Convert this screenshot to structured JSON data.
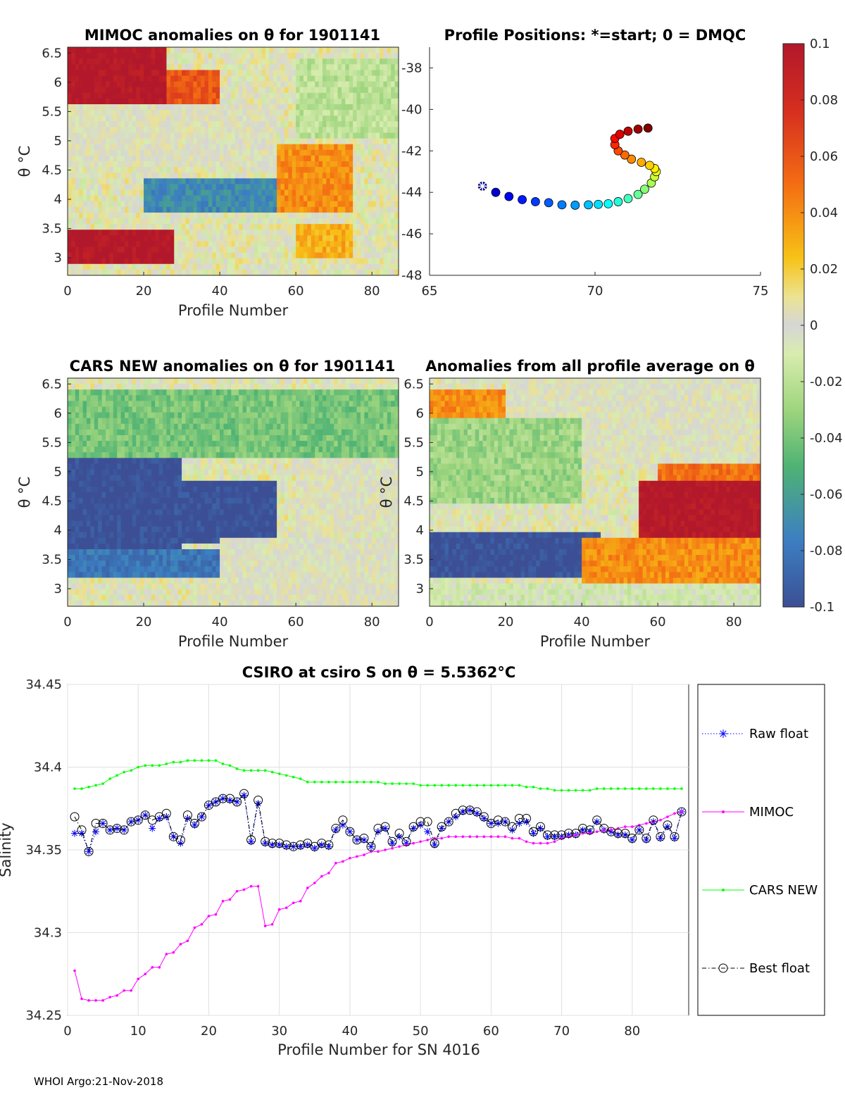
{
  "panels": {
    "mimoc": {
      "title": "MIMOC anomalies on θ  for 1901141",
      "xlabel": "Profile Number",
      "ylabel": "θ °C",
      "xticks": [
        "0",
        "20",
        "40",
        "60",
        "80"
      ],
      "yticks": [
        "6.5",
        "6",
        "5.5",
        "5",
        "4.5",
        "4",
        "3.5",
        "3"
      ]
    },
    "positions": {
      "title": "Profile Positions: *=start; 0 = DMQC",
      "xticks": [
        "65",
        "70",
        "75"
      ],
      "yticks": [
        "-38",
        "-40",
        "-42",
        "-44",
        "-46",
        "-48"
      ]
    },
    "cars": {
      "title": "CARS NEW anomalies on θ for 1901141",
      "xlabel": "Profile Number",
      "ylabel": "θ °C",
      "xticks": [
        "0",
        "20",
        "40",
        "60",
        "80"
      ],
      "yticks": [
        "6.5",
        "6",
        "5.5",
        "5",
        "4.5",
        "4",
        "3.5",
        "3"
      ]
    },
    "allavg": {
      "title": "Anomalies from all profile average on θ",
      "xlabel": "Profile Number",
      "ylabel": "θ °C",
      "xticks": [
        "0",
        "20",
        "40",
        "60",
        "80"
      ],
      "yticks": [
        "6.5",
        "6",
        "5.5",
        "5",
        "4.5",
        "4",
        "3.5",
        "3"
      ]
    },
    "colorbar": {
      "ticks": [
        "0.1",
        "0.08",
        "0.06",
        "0.04",
        "0.02",
        "0",
        "-0.02",
        "-0.04",
        "-0.06",
        "-0.08",
        "-0.1"
      ]
    }
  },
  "chart_data": [
    {
      "type": "heatmap",
      "title": "MIMOC anomalies on θ  for 1901141",
      "xlabel": "Profile Number",
      "ylabel": "θ °C",
      "xlim": [
        0,
        87
      ],
      "ylim": [
        2.7,
        6.6
      ],
      "clim": [
        -0.1,
        0.1
      ],
      "regions": [
        {
          "x": [
            0,
            26
          ],
          "y": [
            5.6,
            6.6
          ],
          "value": 0.1
        },
        {
          "x": [
            26,
            40
          ],
          "y": [
            5.2,
            6.2
          ],
          "value": 0.06
        },
        {
          "x": [
            0,
            55
          ],
          "y": [
            4.6,
            5.6
          ],
          "value": 0.0
        },
        {
          "x": [
            20,
            55
          ],
          "y": [
            3.8,
            4.4
          ],
          "value": -0.07
        },
        {
          "x": [
            55,
            75
          ],
          "y": [
            3.8,
            4.9
          ],
          "value": 0.04
        },
        {
          "x": [
            0,
            28
          ],
          "y": [
            2.9,
            3.5
          ],
          "value": 0.1
        },
        {
          "x": [
            60,
            75
          ],
          "y": [
            3.0,
            3.6
          ],
          "value": 0.03
        },
        {
          "x": [
            60,
            87
          ],
          "y": [
            5.0,
            6.4
          ],
          "value": -0.02
        }
      ]
    },
    {
      "type": "scatter",
      "title": "Profile Positions: *=start; 0 = DMQC",
      "xlim": [
        65,
        75
      ],
      "ylim": [
        -48,
        -37
      ],
      "colorby": "profile number",
      "lon": [
        66.6,
        67.0,
        67.4,
        67.8,
        68.2,
        68.6,
        69.0,
        69.4,
        69.8,
        70.1,
        70.4,
        70.7,
        71.0,
        71.3,
        71.5,
        71.7,
        71.8,
        71.85,
        71.8,
        71.65,
        71.4,
        71.1,
        70.9,
        70.7,
        70.6,
        70.6,
        70.75,
        71.0,
        71.3,
        71.6
      ],
      "lat": [
        -43.7,
        -44.0,
        -44.2,
        -44.35,
        -44.45,
        -44.5,
        -44.6,
        -44.62,
        -44.6,
        -44.58,
        -44.55,
        -44.45,
        -44.3,
        -44.1,
        -43.85,
        -43.55,
        -43.25,
        -43.0,
        -42.85,
        -42.7,
        -42.55,
        -42.4,
        -42.2,
        -42.0,
        -41.7,
        -41.4,
        -41.2,
        -41.05,
        -40.95,
        -40.9
      ]
    },
    {
      "type": "heatmap",
      "title": "CARS NEW anomalies on θ for 1901141",
      "xlabel": "Profile Number",
      "ylabel": "θ °C",
      "xlim": [
        0,
        87
      ],
      "ylim": [
        2.7,
        6.6
      ],
      "clim": [
        -0.1,
        0.1
      ],
      "regions": [
        {
          "x": [
            0,
            30
          ],
          "y": [
            3.7,
            5.2
          ],
          "value": -0.1
        },
        {
          "x": [
            30,
            55
          ],
          "y": [
            3.8,
            4.8
          ],
          "value": -0.1
        },
        {
          "x": [
            0,
            87
          ],
          "y": [
            5.2,
            6.4
          ],
          "value": -0.04
        },
        {
          "x": [
            40,
            87
          ],
          "y": [
            2.7,
            3.9
          ],
          "value": 0.0
        },
        {
          "x": [
            0,
            40
          ],
          "y": [
            3.2,
            3.7
          ],
          "value": -0.08
        },
        {
          "x": [
            60,
            87
          ],
          "y": [
            4.0,
            5.2
          ],
          "value": 0.0
        }
      ]
    },
    {
      "type": "heatmap",
      "title": "Anomalies from all profile average on θ",
      "xlabel": "Profile Number",
      "ylabel": "θ °C",
      "xlim": [
        0,
        87
      ],
      "ylim": [
        2.7,
        6.6
      ],
      "clim": [
        -0.1,
        0.1
      ],
      "regions": [
        {
          "x": [
            0,
            20
          ],
          "y": [
            5.9,
            6.4
          ],
          "value": 0.04
        },
        {
          "x": [
            20,
            87
          ],
          "y": [
            5.0,
            6.6
          ],
          "value": 0.0
        },
        {
          "x": [
            0,
            40
          ],
          "y": [
            4.5,
            5.9
          ],
          "value": -0.03
        },
        {
          "x": [
            0,
            45
          ],
          "y": [
            3.2,
            4.0
          ],
          "value": -0.1
        },
        {
          "x": [
            55,
            87
          ],
          "y": [
            3.9,
            4.8
          ],
          "value": 0.1
        },
        {
          "x": [
            60,
            87
          ],
          "y": [
            4.8,
            5.1
          ],
          "value": 0.05
        },
        {
          "x": [
            40,
            87
          ],
          "y": [
            3.1,
            3.9
          ],
          "value": 0.04
        },
        {
          "x": [
            0,
            87
          ],
          "y": [
            2.7,
            3.1
          ],
          "value": -0.01
        }
      ]
    },
    {
      "type": "line",
      "title": "CSIRO at csiro S on θ = 5.5362°C",
      "xlabel": "Profile Number for SN 4016",
      "ylabel": "Salinity",
      "xlim": [
        0,
        88
      ],
      "ylim": [
        34.25,
        34.45
      ],
      "xticks": [
        "0",
        "10",
        "20",
        "30",
        "40",
        "50",
        "60",
        "70",
        "80"
      ],
      "yticks": [
        "34.45",
        "34.4",
        "34.35",
        "34.3",
        "34.25"
      ],
      "x": [
        1,
        2,
        3,
        4,
        5,
        6,
        7,
        8,
        9,
        10,
        11,
        12,
        13,
        14,
        15,
        16,
        17,
        18,
        19,
        20,
        21,
        22,
        23,
        24,
        25,
        26,
        27,
        28,
        29,
        30,
        31,
        32,
        33,
        34,
        35,
        36,
        37,
        38,
        39,
        40,
        41,
        42,
        43,
        44,
        45,
        46,
        47,
        48,
        49,
        50,
        51,
        52,
        53,
        54,
        55,
        56,
        57,
        58,
        59,
        60,
        61,
        62,
        63,
        64,
        65,
        66,
        67,
        68,
        69,
        70,
        71,
        72,
        73,
        74,
        75,
        76,
        77,
        78,
        79,
        80,
        81,
        82,
        83,
        84,
        85,
        86,
        87
      ],
      "series": [
        {
          "name": "Raw float",
          "color": "#0000ff",
          "values": [
            34.36,
            34.36,
            34.349,
            34.361,
            34.366,
            34.362,
            34.363,
            34.362,
            34.367,
            34.368,
            34.371,
            34.363,
            34.369,
            34.37,
            34.358,
            34.354,
            34.369,
            34.365,
            34.37,
            34.377,
            34.379,
            34.381,
            34.38,
            34.379,
            34.383,
            34.355,
            34.378,
            34.354,
            34.353,
            34.353,
            34.352,
            34.352,
            34.352,
            34.353,
            34.351,
            34.353,
            34.352,
            34.362,
            34.365,
            34.361,
            34.356,
            34.356,
            34.352,
            34.361,
            34.363,
            34.354,
            34.358,
            34.354,
            34.363,
            34.365,
            34.361,
            34.353,
            34.363,
            34.367,
            34.37,
            34.373,
            34.374,
            34.372,
            34.369,
            34.366,
            34.366,
            34.367,
            34.362,
            34.366,
            34.367,
            34.36,
            34.363,
            34.358,
            34.358,
            34.358,
            34.359,
            34.359,
            34.362,
            34.361,
            34.367,
            34.362,
            34.361,
            34.359,
            34.359,
            34.356,
            34.362,
            34.356,
            34.367,
            34.357,
            34.364,
            34.357,
            34.373
          ]
        },
        {
          "name": "MIMOC",
          "color": "#ff00ff",
          "values": [
            34.277,
            34.26,
            34.259,
            34.259,
            34.259,
            34.261,
            34.262,
            34.265,
            34.265,
            34.272,
            34.275,
            34.279,
            34.279,
            34.287,
            34.288,
            34.293,
            34.295,
            34.303,
            34.305,
            34.31,
            34.311,
            34.319,
            34.32,
            34.325,
            34.326,
            34.328,
            34.328,
            34.304,
            34.305,
            34.314,
            34.315,
            34.318,
            34.319,
            34.327,
            34.33,
            34.334,
            34.336,
            34.342,
            34.343,
            34.345,
            34.346,
            34.347,
            34.349,
            34.349,
            34.35,
            34.351,
            34.352,
            34.353,
            34.354,
            34.355,
            34.356,
            34.357,
            34.357,
            34.358,
            34.358,
            34.358,
            34.358,
            34.358,
            34.358,
            34.358,
            34.358,
            34.358,
            34.357,
            34.357,
            34.355,
            34.354,
            34.354,
            34.354,
            34.355,
            34.357,
            34.358,
            34.359,
            34.36,
            34.36,
            34.361,
            34.362,
            34.362,
            34.363,
            34.364,
            34.364,
            34.365,
            34.366,
            34.367,
            34.368,
            34.37,
            34.372,
            34.373
          ]
        },
        {
          "name": "CARS NEW",
          "color": "#00ff00",
          "values": [
            34.387,
            34.387,
            34.388,
            34.389,
            34.39,
            34.393,
            34.395,
            34.397,
            34.398,
            34.4,
            34.401,
            34.401,
            34.401,
            34.402,
            34.403,
            34.403,
            34.404,
            34.404,
            34.404,
            34.404,
            34.404,
            34.402,
            34.401,
            34.399,
            34.398,
            34.398,
            34.398,
            34.398,
            34.397,
            34.396,
            34.395,
            34.394,
            34.393,
            34.391,
            34.391,
            34.391,
            34.391,
            34.391,
            34.391,
            34.391,
            34.391,
            34.391,
            34.391,
            34.391,
            34.39,
            34.39,
            34.39,
            34.39,
            34.39,
            34.389,
            34.389,
            34.389,
            34.389,
            34.389,
            34.389,
            34.389,
            34.389,
            34.389,
            34.389,
            34.389,
            34.389,
            34.389,
            34.389,
            34.389,
            34.388,
            34.388,
            34.387,
            34.387,
            34.386,
            34.386,
            34.386,
            34.386,
            34.386,
            34.386,
            34.387,
            34.387,
            34.387,
            34.387,
            34.387,
            34.387,
            34.387,
            34.387,
            34.387,
            34.387,
            34.387,
            34.387,
            34.387
          ]
        },
        {
          "name": "Best float",
          "color": "#000000",
          "values": [
            34.37,
            34.362,
            34.349,
            34.366,
            34.366,
            34.362,
            34.363,
            34.362,
            34.367,
            34.368,
            34.371,
            34.368,
            34.37,
            34.372,
            34.358,
            34.356,
            34.371,
            34.366,
            34.37,
            34.377,
            34.379,
            34.381,
            34.381,
            34.379,
            34.384,
            34.356,
            34.38,
            34.355,
            34.354,
            34.354,
            34.353,
            34.352,
            34.353,
            34.354,
            34.352,
            34.354,
            34.353,
            34.363,
            34.368,
            34.361,
            34.356,
            34.357,
            34.352,
            34.363,
            34.364,
            34.355,
            34.36,
            34.355,
            34.364,
            34.367,
            34.367,
            34.354,
            34.364,
            34.367,
            34.372,
            34.374,
            34.374,
            34.373,
            34.37,
            34.366,
            34.368,
            34.367,
            34.364,
            34.369,
            34.369,
            34.361,
            34.364,
            34.359,
            34.359,
            34.359,
            34.36,
            34.36,
            34.363,
            34.362,
            34.368,
            34.363,
            34.361,
            34.36,
            34.36,
            34.357,
            34.362,
            34.357,
            34.368,
            34.358,
            34.365,
            34.358,
            34.373
          ]
        }
      ]
    }
  ],
  "legend": {
    "items": [
      "Raw float",
      "MIMOC",
      "CARS NEW",
      "Best float"
    ]
  },
  "footer": "WHOI Argo:21-Nov-2018"
}
